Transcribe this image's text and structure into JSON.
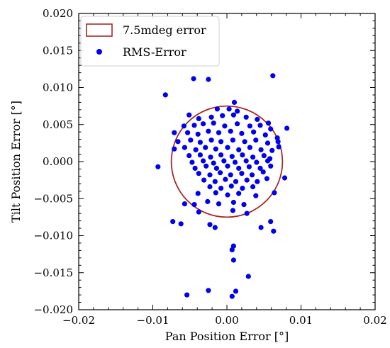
{
  "chart_data": {
    "type": "scatter",
    "xlabel": "Pan Position Error [°]",
    "ylabel": "Tilt Position Error [°]",
    "xlim": [
      -0.02,
      0.02
    ],
    "ylim": [
      -0.02,
      0.02
    ],
    "x_ticks": [
      "−0.02",
      "−0.01",
      "0.00",
      "0.01",
      "0.02"
    ],
    "y_ticks": [
      "0.020",
      "0.015",
      "0.010",
      "0.005",
      "0.000",
      "−0.005",
      "−0.010",
      "−0.015",
      "−0.020"
    ],
    "x_tick_values": [
      -0.02,
      -0.01,
      0.0,
      0.01,
      0.02
    ],
    "y_tick_values": [
      0.02,
      0.015,
      0.01,
      0.005,
      0.0,
      -0.005,
      -0.01,
      -0.015,
      -0.02
    ],
    "grid": false,
    "legend": {
      "placement": "top-left",
      "entries": [
        {
          "label": "7.5mdeg error",
          "kind": "circle-outline",
          "color": "#a52a2a"
        },
        {
          "label": "RMS-Error",
          "kind": "marker",
          "color": "#0000ee"
        }
      ]
    },
    "circle": {
      "name": "7.5mdeg error",
      "center": [
        0.0,
        0.0
      ],
      "radius": 0.0075,
      "color": "#a52a2a"
    },
    "series": [
      {
        "name": "RMS-Error",
        "color": "#0000ee",
        "points": [
          [
            -0.0045,
            0.0112
          ],
          [
            -0.0025,
            0.0111
          ],
          [
            0.0062,
            0.0116
          ],
          [
            -0.0083,
            0.009
          ],
          [
            0.001,
            0.008
          ],
          [
            -0.0013,
            0.0071
          ],
          [
            0.0003,
            0.0071
          ],
          [
            0.0014,
            0.0068
          ],
          [
            -0.0051,
            0.0063
          ],
          [
            -0.0038,
            0.0058
          ],
          [
            -0.0021,
            0.006
          ],
          [
            -0.0006,
            0.0062
          ],
          [
            0.0009,
            0.0063
          ],
          [
            0.0026,
            0.006
          ],
          [
            0.0041,
            0.0057
          ],
          [
            0.0056,
            0.0052
          ],
          [
            -0.0058,
            0.0048
          ],
          [
            -0.0044,
            0.0049
          ],
          [
            -0.0032,
            0.0051
          ],
          [
            -0.0018,
            0.0052
          ],
          [
            -0.0003,
            0.0048
          ],
          [
            0.0014,
            0.0051
          ],
          [
            0.0031,
            0.0048
          ],
          [
            0.0045,
            0.0049
          ],
          [
            0.0059,
            0.0044
          ],
          [
            0.0081,
            0.0045
          ],
          [
            -0.0071,
            0.0039
          ],
          [
            -0.0053,
            0.0039
          ],
          [
            -0.0039,
            0.0037
          ],
          [
            -0.0025,
            0.0041
          ],
          [
            -0.0011,
            0.0039
          ],
          [
            0.0005,
            0.0041
          ],
          [
            0.002,
            0.0038
          ],
          [
            0.0036,
            0.004
          ],
          [
            0.0052,
            0.0036
          ],
          [
            0.0068,
            0.0032
          ],
          [
            -0.0066,
            0.0027
          ],
          [
            -0.0049,
            0.0029
          ],
          [
            -0.0036,
            0.0026
          ],
          [
            -0.0021,
            0.0029
          ],
          [
            -0.0008,
            0.0027
          ],
          [
            0.0008,
            0.0029
          ],
          [
            0.0024,
            0.0027
          ],
          [
            0.0039,
            0.0029
          ],
          [
            0.0055,
            0.0025
          ],
          [
            0.0069,
            0.0027
          ],
          [
            -0.0071,
            0.0017
          ],
          [
            -0.0057,
            0.0019
          ],
          [
            -0.0042,
            0.0016
          ],
          [
            -0.0029,
            0.0019
          ],
          [
            -0.0015,
            0.0017
          ],
          [
            0.0001,
            0.0019
          ],
          [
            0.0016,
            0.0016
          ],
          [
            0.0031,
            0.0019
          ],
          [
            0.0046,
            0.0016
          ],
          [
            0.0061,
            0.0015
          ],
          [
            0.007,
            0.002
          ],
          [
            -0.0051,
            0.0008
          ],
          [
            -0.0036,
            0.0009
          ],
          [
            -0.0022,
            0.0006
          ],
          [
            -0.0008,
            0.0009
          ],
          [
            0.0007,
            0.0007
          ],
          [
            0.0021,
            0.0009
          ],
          [
            0.0035,
            0.0006
          ],
          [
            0.005,
            0.0008
          ],
          [
            0.0058,
            0.0004
          ],
          [
            -0.0047,
            -0.0001
          ],
          [
            -0.0032,
            0.0001
          ],
          [
            -0.0018,
            -0.0002
          ],
          [
            -0.0004,
            0.0001
          ],
          [
            0.0011,
            -0.0001
          ],
          [
            0.0026,
            0.0001
          ],
          [
            0.004,
            -0.0001
          ],
          [
            0.0055,
            0.0001
          ],
          [
            -0.0093,
            -0.0007
          ],
          [
            -0.0043,
            -0.0009
          ],
          [
            -0.0028,
            -0.0006
          ],
          [
            -0.0014,
            -0.0009
          ],
          [
            0.0001,
            -0.0006
          ],
          [
            0.0016,
            -0.0009
          ],
          [
            0.003,
            -0.0007
          ],
          [
            0.0045,
            -0.0009
          ],
          [
            0.0059,
            -0.0006
          ],
          [
            -0.0038,
            -0.0016
          ],
          [
            -0.0023,
            -0.0018
          ],
          [
            -0.0009,
            -0.0015
          ],
          [
            0.0005,
            -0.0018
          ],
          [
            0.002,
            -0.0016
          ],
          [
            0.0034,
            -0.0018
          ],
          [
            0.0049,
            -0.0014
          ],
          [
            0.0078,
            -0.0022
          ],
          [
            -0.0031,
            -0.0025
          ],
          [
            -0.0016,
            -0.0027
          ],
          [
            -0.0002,
            -0.0024
          ],
          [
            0.0012,
            -0.0027
          ],
          [
            0.0027,
            -0.0025
          ],
          [
            0.0041,
            -0.0027
          ],
          [
            0.0054,
            -0.0023
          ],
          [
            -0.0023,
            -0.0034
          ],
          [
            -0.0008,
            -0.0036
          ],
          [
            0.0006,
            -0.0033
          ],
          [
            0.0021,
            -0.0036
          ],
          [
            0.0035,
            -0.0034
          ],
          [
            -0.0039,
            -0.0043
          ],
          [
            -0.0015,
            -0.0042
          ],
          [
            0.0001,
            -0.0045
          ],
          [
            0.0016,
            -0.0043
          ],
          [
            0.0039,
            -0.0046
          ],
          [
            0.0064,
            -0.0042
          ],
          [
            -0.0057,
            -0.0057
          ],
          [
            -0.0044,
            -0.0058
          ],
          [
            -0.0026,
            -0.0054
          ],
          [
            -0.0011,
            -0.0057
          ],
          [
            0.0009,
            -0.0055
          ],
          [
            0.0023,
            -0.0058
          ],
          [
            -0.0038,
            -0.0068
          ],
          [
            0.0008,
            -0.0066
          ],
          [
            0.0027,
            -0.007
          ],
          [
            -0.0073,
            -0.0081
          ],
          [
            -0.0062,
            -0.0084
          ],
          [
            -0.0023,
            -0.0085
          ],
          [
            -0.0016,
            -0.0089
          ],
          [
            0.0046,
            -0.0089
          ],
          [
            0.0059,
            -0.0081
          ],
          [
            0.0063,
            -0.0094
          ],
          [
            0.0009,
            -0.0114
          ],
          [
            0.0007,
            -0.0119
          ],
          [
            0.0009,
            -0.0133
          ],
          [
            0.0029,
            -0.0155
          ],
          [
            -0.0025,
            -0.0174
          ],
          [
            0.0012,
            -0.0175
          ],
          [
            -0.0054,
            -0.018
          ],
          [
            0.0007,
            -0.0182
          ]
        ]
      }
    ]
  }
}
